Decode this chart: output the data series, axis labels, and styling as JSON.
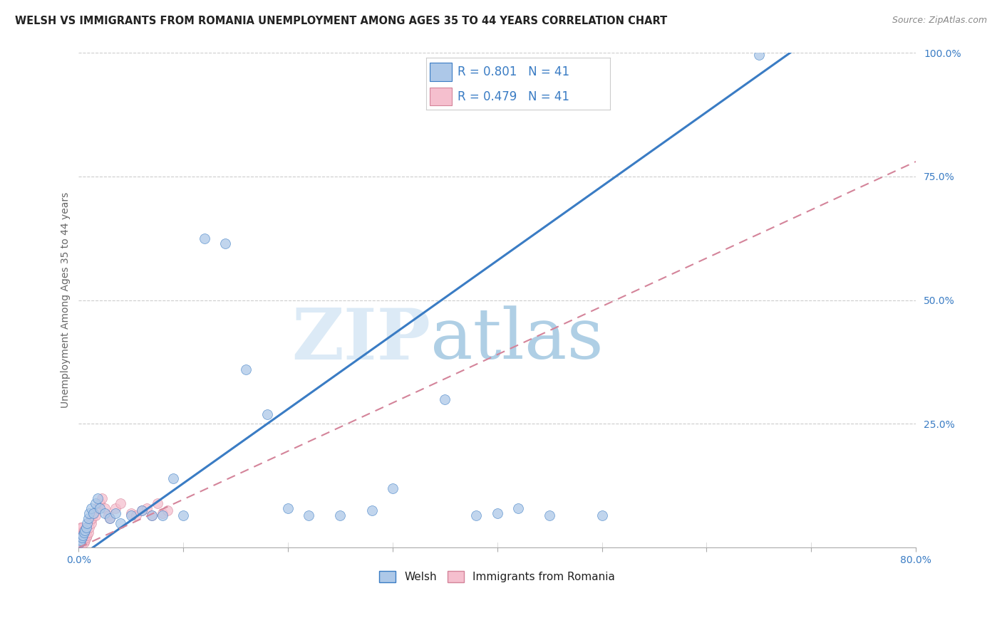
{
  "title": "WELSH VS IMMIGRANTS FROM ROMANIA UNEMPLOYMENT AMONG AGES 35 TO 44 YEARS CORRELATION CHART",
  "source": "Source: ZipAtlas.com",
  "ylabel": "Unemployment Among Ages 35 to 44 years",
  "xlim": [
    0,
    0.8
  ],
  "ylim": [
    0,
    1.0
  ],
  "welsh_R": 0.801,
  "welsh_N": 41,
  "romania_R": 0.479,
  "romania_N": 41,
  "welsh_color": "#adc8e8",
  "welsh_line_color": "#3a7cc4",
  "romania_color": "#f5bfce",
  "romania_line_color": "#d4849a",
  "legend_welsh_label": "Welsh",
  "legend_romania_label": "Immigrants from Romania",
  "watermark": "ZIPatlas",
  "watermark_color_zip": "#c5ddf0",
  "watermark_color_atlas": "#7ab0d4",
  "background_color": "#ffffff",
  "welsh_x": [
    0.001,
    0.002,
    0.003,
    0.004,
    0.005,
    0.006,
    0.007,
    0.008,
    0.009,
    0.01,
    0.012,
    0.014,
    0.016,
    0.018,
    0.02,
    0.025,
    0.03,
    0.035,
    0.04,
    0.05,
    0.06,
    0.07,
    0.08,
    0.09,
    0.1,
    0.12,
    0.14,
    0.16,
    0.18,
    0.2,
    0.22,
    0.25,
    0.28,
    0.3,
    0.35,
    0.38,
    0.4,
    0.42,
    0.45,
    0.5,
    0.65
  ],
  "welsh_y": [
    0.01,
    0.015,
    0.02,
    0.025,
    0.03,
    0.035,
    0.04,
    0.05,
    0.06,
    0.07,
    0.08,
    0.07,
    0.09,
    0.1,
    0.08,
    0.07,
    0.06,
    0.07,
    0.05,
    0.065,
    0.075,
    0.065,
    0.065,
    0.14,
    0.065,
    0.625,
    0.615,
    0.36,
    0.27,
    0.08,
    0.065,
    0.065,
    0.075,
    0.12,
    0.3,
    0.065,
    0.07,
    0.08,
    0.065,
    0.065,
    0.995
  ],
  "romania_x": [
    0.001,
    0.001,
    0.001,
    0.002,
    0.002,
    0.002,
    0.003,
    0.003,
    0.003,
    0.003,
    0.004,
    0.004,
    0.005,
    0.005,
    0.006,
    0.006,
    0.007,
    0.008,
    0.009,
    0.01,
    0.011,
    0.012,
    0.013,
    0.015,
    0.016,
    0.018,
    0.02,
    0.022,
    0.025,
    0.028,
    0.03,
    0.035,
    0.04,
    0.05,
    0.055,
    0.06,
    0.065,
    0.07,
    0.075,
    0.08,
    0.085
  ],
  "romania_y": [
    0.01,
    0.02,
    0.03,
    0.015,
    0.025,
    0.04,
    0.01,
    0.02,
    0.03,
    0.04,
    0.015,
    0.025,
    0.01,
    0.035,
    0.015,
    0.025,
    0.02,
    0.025,
    0.03,
    0.04,
    0.055,
    0.05,
    0.06,
    0.07,
    0.065,
    0.08,
    0.09,
    0.1,
    0.08,
    0.065,
    0.06,
    0.08,
    0.09,
    0.07,
    0.065,
    0.075,
    0.08,
    0.065,
    0.09,
    0.07,
    0.075
  ],
  "welsh_line_x0": 0.0,
  "welsh_line_y0": -0.02,
  "welsh_line_x1": 0.68,
  "welsh_line_y1": 1.0,
  "romania_line_x0": 0.0,
  "romania_line_y0": 0.0,
  "romania_line_x1": 0.8,
  "romania_line_y1": 0.78,
  "title_fontsize": 10.5,
  "source_fontsize": 9,
  "axis_label_fontsize": 10,
  "tick_fontsize": 10,
  "legend_fontsize": 11,
  "marker_size": 100
}
